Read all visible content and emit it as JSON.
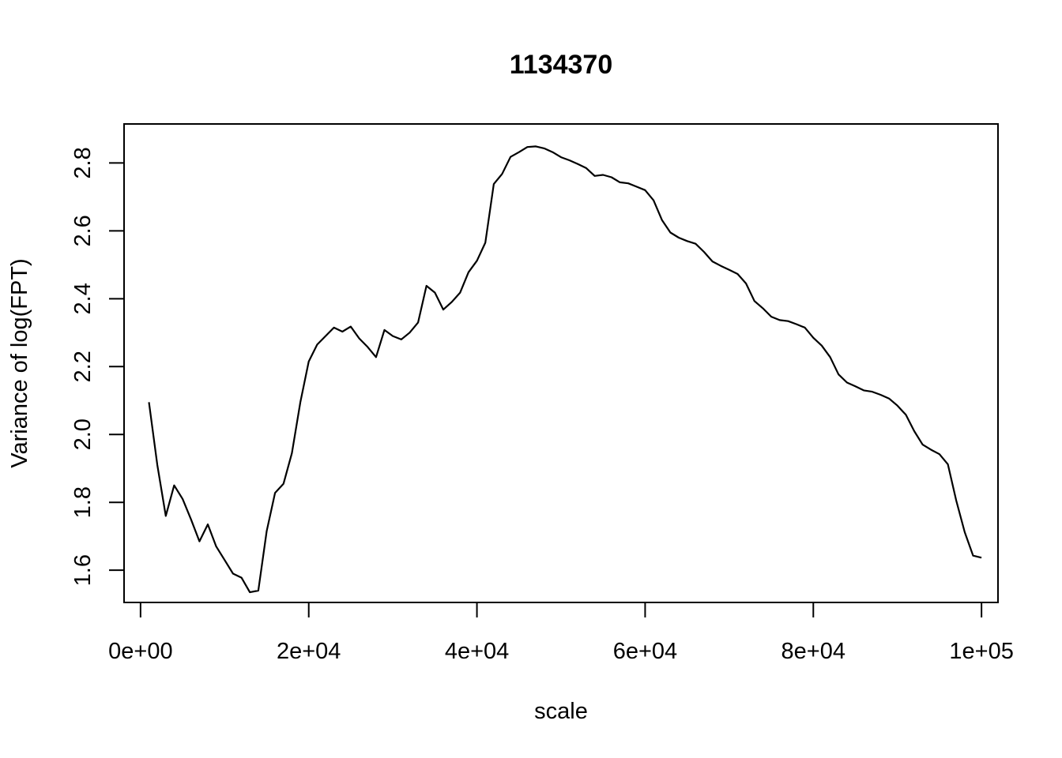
{
  "chart_data": {
    "type": "line",
    "title": "1134370",
    "xlabel": "scale",
    "ylabel": "Variance of log(FPT)",
    "xlim": [
      -1960,
      101960
    ],
    "ylim": [
      1.505,
      2.915
    ],
    "xticks": [
      0,
      20000,
      40000,
      60000,
      80000,
      100000
    ],
    "xtick_labels": [
      "0e+00",
      "2e+04",
      "4e+04",
      "6e+04",
      "8e+04",
      "1e+05"
    ],
    "yticks": [
      1.6,
      1.8,
      2.0,
      2.2,
      2.4,
      2.6,
      2.8
    ],
    "ytick_labels": [
      "1.6",
      "1.8",
      "2.0",
      "2.2",
      "2.4",
      "2.6",
      "2.8"
    ],
    "grid": false,
    "legend": "none",
    "line_color": "#000000",
    "series": [
      {
        "x": [
          1000,
          2000,
          3000,
          4000,
          5000,
          6000,
          7000,
          8000,
          9000,
          10000,
          11000,
          12000,
          13000,
          14000,
          15000,
          16000,
          17000,
          18000,
          19000,
          20000,
          21000,
          22000,
          23000,
          24000,
          25000,
          26000,
          27000,
          28000,
          29000,
          30000,
          31000,
          32000,
          33000,
          34000,
          35000,
          36000,
          37000,
          38000,
          39000,
          40000,
          41000,
          42000,
          43000,
          44000,
          45000,
          46000,
          47000,
          48000,
          49000,
          50000,
          51000,
          52000,
          53000,
          54000,
          55000,
          56000,
          57000,
          58000,
          59000,
          60000,
          61000,
          62000,
          63000,
          64000,
          65000,
          66000,
          67000,
          68000,
          69000,
          70000,
          71000,
          72000,
          73000,
          74000,
          75000,
          76000,
          77000,
          78000,
          79000,
          80000,
          81000,
          82000,
          83000,
          84000,
          85000,
          86000,
          87000,
          88000,
          89000,
          90000,
          91000,
          92000,
          93000,
          94000,
          95000,
          96000,
          97000,
          98000,
          99000,
          100000
        ],
        "y": [
          2.095,
          1.91,
          1.76,
          1.85,
          1.81,
          1.75,
          1.685,
          1.735,
          1.67,
          1.63,
          1.59,
          1.578,
          1.535,
          1.54,
          1.715,
          1.828,
          1.855,
          1.945,
          2.095,
          2.215,
          2.265,
          2.29,
          2.315,
          2.303,
          2.318,
          2.283,
          2.258,
          2.228,
          2.308,
          2.29,
          2.28,
          2.3,
          2.33,
          2.438,
          2.418,
          2.368,
          2.39,
          2.418,
          2.478,
          2.512,
          2.565,
          2.738,
          2.768,
          2.818,
          2.832,
          2.847,
          2.849,
          2.843,
          2.832,
          2.817,
          2.808,
          2.797,
          2.785,
          2.762,
          2.765,
          2.758,
          2.743,
          2.74,
          2.73,
          2.72,
          2.69,
          2.632,
          2.595,
          2.58,
          2.57,
          2.562,
          2.538,
          2.51,
          2.497,
          2.485,
          2.473,
          2.445,
          2.393,
          2.372,
          2.347,
          2.337,
          2.334,
          2.325,
          2.315,
          2.285,
          2.262,
          2.228,
          2.177,
          2.153,
          2.142,
          2.13,
          2.126,
          2.117,
          2.106,
          2.085,
          2.058,
          2.01,
          1.97,
          1.955,
          1.942,
          1.912,
          1.805,
          1.712,
          1.643,
          1.637
        ]
      }
    ]
  }
}
